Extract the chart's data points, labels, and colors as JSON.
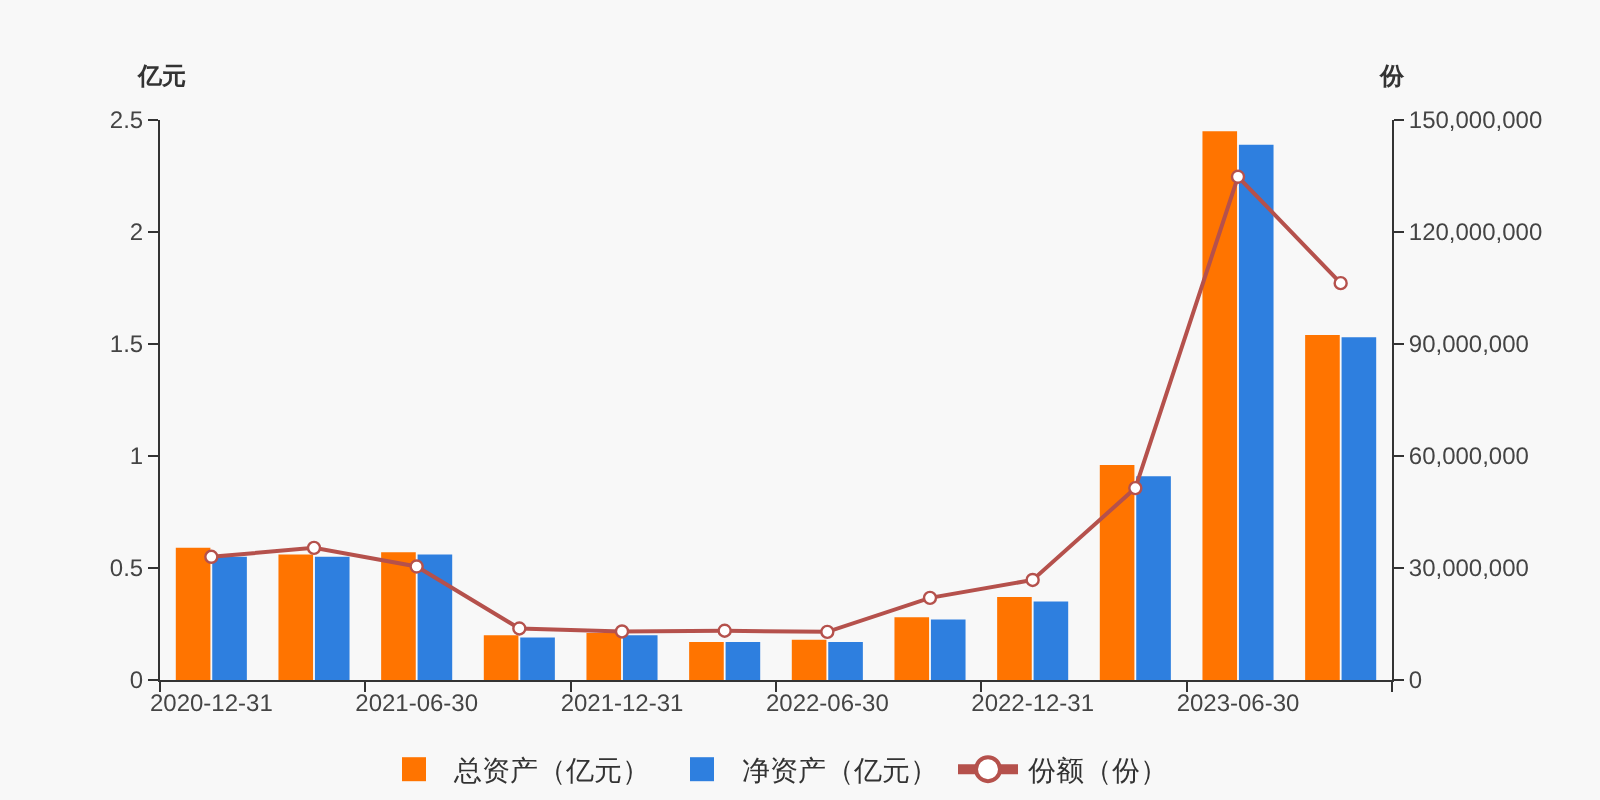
{
  "chart_data": {
    "type": "bar",
    "ylabel": "亿元",
    "y2label": "份",
    "categories": [
      "2020-12-31",
      null,
      "2021-06-30",
      null,
      "2021-12-31",
      null,
      "2022-06-30",
      null,
      "2022-12-31",
      null,
      "2023-06-30",
      null
    ],
    "series": [
      {
        "name": "总资产（亿元）",
        "color": "#ff7400",
        "values": [
          0.59,
          0.56,
          0.57,
          0.2,
          0.21,
          0.17,
          0.18,
          0.28,
          0.37,
          0.96,
          2.45,
          1.54
        ]
      },
      {
        "name": "净资产（亿元）",
        "color": "#2e7fdf",
        "values": [
          0.55,
          0.55,
          0.56,
          0.19,
          0.2,
          0.17,
          0.17,
          0.27,
          0.35,
          0.91,
          2.39,
          1.53
        ]
      },
      {
        "name": "份额（份）",
        "type": "line",
        "axis": "y2",
        "color": "#b5514c",
        "marker": "circle",
        "line_style": "solid",
        "values": [
          33000000,
          35400000,
          30400000,
          13800000,
          13000000,
          13200000,
          12900000,
          22000000,
          26800000,
          51400000,
          134800000,
          106300000
        ]
      }
    ],
    "ylim": [
      0,
      2.5
    ],
    "yticks": [
      0,
      0.5,
      1,
      1.5,
      2,
      2.5
    ],
    "y2lim": [
      0,
      150000000
    ],
    "y2ticks": [
      0,
      {
        "value": 30000000,
        "label": "30,000,000"
      },
      {
        "value": 60000000,
        "label": "60,000,000"
      },
      {
        "value": 90000000,
        "label": "90,000,000"
      },
      {
        "value": 120000000,
        "label": "120,000,000"
      },
      {
        "value": 150000000,
        "label": "150,000,000"
      }
    ],
    "grid": false,
    "legend": "bottom"
  }
}
